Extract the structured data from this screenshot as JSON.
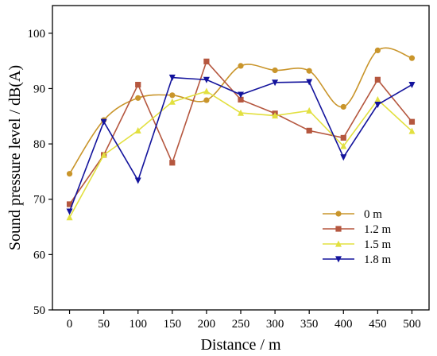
{
  "chart_data": {
    "type": "line",
    "xlabel": "Distance / m",
    "ylabel": "Sound pressure level / dB(A)",
    "x": [
      0,
      50,
      100,
      150,
      200,
      250,
      300,
      350,
      400,
      450,
      500
    ],
    "xlim": [
      -25,
      525
    ],
    "ylim": [
      50,
      105
    ],
    "xticks": [
      0,
      50,
      100,
      150,
      200,
      250,
      300,
      350,
      400,
      450,
      500
    ],
    "xtick_labels": [
      "0",
      "50",
      "100",
      "150",
      "200",
      "250",
      "300",
      "350",
      "400",
      "450",
      "500"
    ],
    "yticks": [
      50,
      60,
      70,
      80,
      90,
      100
    ],
    "ytick_labels": [
      "50",
      "60",
      "70",
      "80",
      "90",
      "100"
    ],
    "grid": false,
    "legend_position": "bottom-right",
    "series": [
      {
        "name": "0 m",
        "color": "#c9952b",
        "marker": "circle",
        "smooth": true,
        "values": [
          74.6,
          84.3,
          88.3,
          88.8,
          87.9,
          94.1,
          93.3,
          93.2,
          86.7,
          96.9,
          95.5
        ]
      },
      {
        "name": "1.2 m",
        "color": "#b5573f",
        "marker": "square",
        "smooth": false,
        "values": [
          69.1,
          78.0,
          90.7,
          76.6,
          94.9,
          88.0,
          85.5,
          82.4,
          81.1,
          91.6,
          84.0
        ]
      },
      {
        "name": "1.5 m",
        "color": "#e2e040",
        "marker": "triangle-up",
        "smooth": false,
        "values": [
          66.7,
          78.0,
          82.4,
          87.6,
          89.5,
          85.6,
          85.1,
          86.0,
          79.6,
          88.0,
          82.3
        ]
      },
      {
        "name": "1.8 m",
        "color": "#13139c",
        "marker": "triangle-down",
        "smooth": false,
        "values": [
          67.8,
          84.0,
          73.4,
          92.0,
          91.6,
          88.9,
          91.1,
          91.2,
          77.6,
          87.1,
          90.7
        ]
      }
    ]
  }
}
